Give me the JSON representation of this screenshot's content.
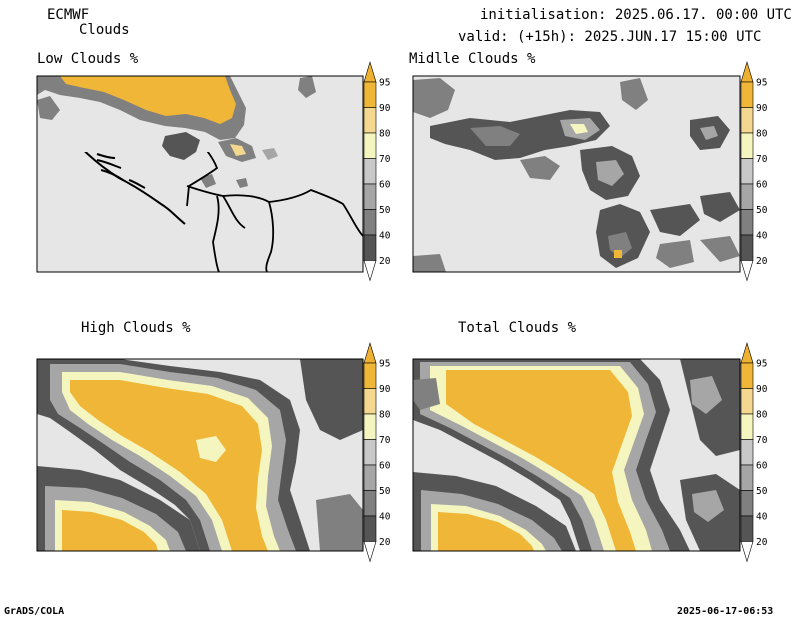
{
  "header": {
    "model": "ECMWF",
    "product": "Clouds",
    "initialisation": "initialisation: 2025.06.17. 00:00 UTC",
    "valid": "valid: (+15h): 2025.JUN.17 15:00 UTC"
  },
  "panels": [
    {
      "id": "low",
      "title": "Low Clouds %"
    },
    {
      "id": "middle",
      "title": "Midlle Clouds %"
    },
    {
      "id": "high",
      "title": "High Clouds %"
    },
    {
      "id": "total",
      "title": "Total Clouds %"
    }
  ],
  "colorbar": {
    "levels": [
      "20",
      "40",
      "50",
      "60",
      "70",
      "80",
      "90",
      "95"
    ],
    "colors": [
      "#ffffff",
      "#555555",
      "#808080",
      "#a6a6a6",
      "#c8c8c8",
      "#f5f5c0",
      "#f5d890",
      "#f0b638",
      "#eeb030"
    ]
  },
  "colors": {
    "background": "#e6e6e6",
    "border": "#000000"
  },
  "footer": {
    "left": "GrADS/COLA",
    "right": "2025-06-17-06:53"
  }
}
